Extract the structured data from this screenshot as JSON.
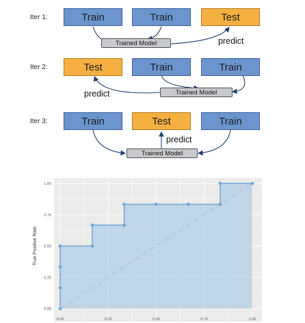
{
  "diagram": {
    "iterations": [
      {
        "label": "Iter 1:",
        "boxes": [
          "Train",
          "Train",
          "Test"
        ],
        "model": "Trained Model",
        "predict": "predict"
      },
      {
        "label": "Iter 2:",
        "boxes": [
          "Test",
          "Train",
          "Train"
        ],
        "model": "Trained Model",
        "predict": "predict"
      },
      {
        "label": "Iter 3:",
        "boxes": [
          "Train",
          "Test",
          "Train"
        ],
        "model": "Trained Model",
        "predict": "predict"
      }
    ],
    "colors": {
      "train": "#6c95cf",
      "test": "#f6b042",
      "model": "#c8cacd",
      "arrow": "#1f3f6e"
    }
  },
  "chart_data": {
    "type": "area",
    "xlabel": "",
    "ylabel": "True Positive Rate",
    "xlim": [
      0,
      1
    ],
    "ylim": [
      0,
      1
    ],
    "x_ticks": [
      "0.00",
      "0.25",
      "0.50",
      "0.75",
      "1.00"
    ],
    "y_ticks": [
      "0.00",
      "0.25",
      "0.50",
      "0.75",
      "1.00"
    ],
    "grid": true,
    "diagonal_reference": true,
    "points": [
      [
        0.0,
        0.0
      ],
      [
        0.0,
        0.167
      ],
      [
        0.0,
        0.333
      ],
      [
        0.0,
        0.5
      ],
      [
        0.167,
        0.5
      ],
      [
        0.167,
        0.667
      ],
      [
        0.333,
        0.667
      ],
      [
        0.333,
        0.833
      ],
      [
        0.5,
        0.833
      ],
      [
        0.667,
        0.833
      ],
      [
        0.833,
        0.833
      ],
      [
        0.833,
        1.0
      ],
      [
        1.0,
        1.0
      ]
    ],
    "colors": {
      "line": "#6ea6d6",
      "fill": "#a9c9e3",
      "panel": "#ebebeb",
      "grid": "#ffffff",
      "diagonal": "#c4c4c4"
    }
  }
}
